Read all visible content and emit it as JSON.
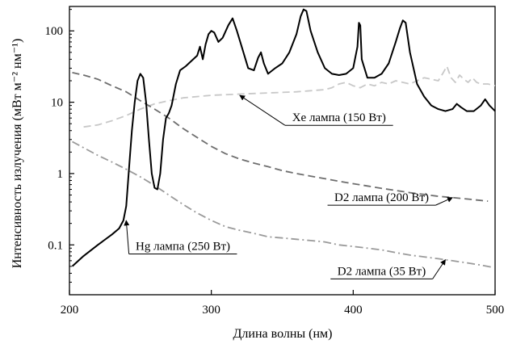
{
  "chart_data": {
    "type": "line",
    "xlabel": "Длина волны (нм)",
    "ylabel": "Интенсивность излучения (мВт м⁻² нм⁻¹)",
    "xlim": [
      200,
      500
    ],
    "ylim": [
      0.02,
      220
    ],
    "yscale": "log",
    "grid": false,
    "xticks": [
      200,
      300,
      400,
      500
    ],
    "xtick_labels": [
      "200",
      "300",
      "400",
      "500"
    ],
    "yticks": [
      0.1,
      1,
      10,
      100
    ],
    "ytick_labels": [
      "0.1",
      "1",
      "10",
      "100"
    ],
    "series": [
      {
        "name": "Hg лампа (250 Вт)",
        "style": "solid",
        "color": "#000000",
        "points": [
          [
            202,
            0.05
          ],
          [
            210,
            0.07
          ],
          [
            220,
            0.1
          ],
          [
            230,
            0.14
          ],
          [
            235,
            0.17
          ],
          [
            238,
            0.22
          ],
          [
            240,
            0.35
          ],
          [
            242,
            1.2
          ],
          [
            244,
            4
          ],
          [
            246,
            10
          ],
          [
            248,
            20
          ],
          [
            250,
            25
          ],
          [
            252,
            22
          ],
          [
            254,
            10
          ],
          [
            256,
            3
          ],
          [
            258,
            1
          ],
          [
            260,
            0.63
          ],
          [
            262,
            0.6
          ],
          [
            264,
            1
          ],
          [
            266,
            3
          ],
          [
            268,
            6
          ],
          [
            270,
            7
          ],
          [
            272,
            9
          ],
          [
            275,
            18
          ],
          [
            278,
            28
          ],
          [
            282,
            32
          ],
          [
            286,
            38
          ],
          [
            290,
            45
          ],
          [
            292,
            60
          ],
          [
            294,
            40
          ],
          [
            296,
            65
          ],
          [
            298,
            90
          ],
          [
            300,
            100
          ],
          [
            302,
            95
          ],
          [
            305,
            70
          ],
          [
            308,
            80
          ],
          [
            312,
            120
          ],
          [
            315,
            150
          ],
          [
            318,
            100
          ],
          [
            322,
            55
          ],
          [
            326,
            30
          ],
          [
            330,
            28
          ],
          [
            333,
            42
          ],
          [
            335,
            50
          ],
          [
            337,
            35
          ],
          [
            340,
            25
          ],
          [
            345,
            30
          ],
          [
            350,
            35
          ],
          [
            355,
            50
          ],
          [
            360,
            90
          ],
          [
            363,
            160
          ],
          [
            365,
            200
          ],
          [
            367,
            190
          ],
          [
            370,
            100
          ],
          [
            375,
            50
          ],
          [
            380,
            30
          ],
          [
            385,
            25
          ],
          [
            390,
            24
          ],
          [
            395,
            25
          ],
          [
            400,
            30
          ],
          [
            403,
            60
          ],
          [
            404,
            130
          ],
          [
            405,
            120
          ],
          [
            406,
            40
          ],
          [
            410,
            22
          ],
          [
            415,
            22
          ],
          [
            420,
            25
          ],
          [
            425,
            35
          ],
          [
            430,
            70
          ],
          [
            433,
            110
          ],
          [
            435,
            140
          ],
          [
            437,
            130
          ],
          [
            440,
            50
          ],
          [
            445,
            18
          ],
          [
            450,
            12
          ],
          [
            455,
            9
          ],
          [
            460,
            8
          ],
          [
            465,
            7.5
          ],
          [
            470,
            8
          ],
          [
            473,
            9.5
          ],
          [
            476,
            8.5
          ],
          [
            480,
            7.5
          ],
          [
            485,
            7.5
          ],
          [
            490,
            9
          ],
          [
            493,
            11
          ],
          [
            496,
            9
          ],
          [
            500,
            7.5
          ]
        ]
      },
      {
        "name": "Xe лампа (150 Вт)",
        "style": "dashed",
        "color": "#c8c8c8",
        "points": [
          [
            210,
            4.5
          ],
          [
            220,
            4.8
          ],
          [
            230,
            5.5
          ],
          [
            240,
            6.5
          ],
          [
            250,
            8
          ],
          [
            260,
            9.5
          ],
          [
            270,
            10.5
          ],
          [
            280,
            11.5
          ],
          [
            300,
            12.5
          ],
          [
            320,
            13
          ],
          [
            340,
            13.5
          ],
          [
            360,
            14
          ],
          [
            380,
            15
          ],
          [
            385,
            16
          ],
          [
            390,
            18
          ],
          [
            395,
            19
          ],
          [
            400,
            17
          ],
          [
            405,
            16
          ],
          [
            410,
            18
          ],
          [
            415,
            17
          ],
          [
            420,
            19
          ],
          [
            425,
            18
          ],
          [
            430,
            20
          ],
          [
            435,
            19
          ],
          [
            440,
            18
          ],
          [
            445,
            20
          ],
          [
            450,
            22
          ],
          [
            455,
            21
          ],
          [
            460,
            20
          ],
          [
            463,
            25
          ],
          [
            466,
            32
          ],
          [
            469,
            22
          ],
          [
            472,
            19
          ],
          [
            475,
            24
          ],
          [
            478,
            21
          ],
          [
            481,
            19
          ],
          [
            484,
            22
          ],
          [
            487,
            19
          ],
          [
            490,
            18
          ],
          [
            495,
            18
          ],
          [
            500,
            17
          ]
        ]
      },
      {
        "name": "D2 лампа (200 Вт)",
        "style": "dashed",
        "color": "#6e6e6e",
        "points": [
          [
            202,
            26
          ],
          [
            210,
            24
          ],
          [
            220,
            21
          ],
          [
            230,
            17
          ],
          [
            240,
            14
          ],
          [
            250,
            10.5
          ],
          [
            260,
            8
          ],
          [
            270,
            6
          ],
          [
            280,
            4.3
          ],
          [
            290,
            3.2
          ],
          [
            300,
            2.4
          ],
          [
            310,
            1.9
          ],
          [
            320,
            1.6
          ],
          [
            330,
            1.4
          ],
          [
            340,
            1.25
          ],
          [
            350,
            1.1
          ],
          [
            360,
            1
          ],
          [
            370,
            0.92
          ],
          [
            380,
            0.85
          ],
          [
            390,
            0.78
          ],
          [
            400,
            0.72
          ],
          [
            410,
            0.67
          ],
          [
            420,
            0.62
          ],
          [
            430,
            0.58
          ],
          [
            440,
            0.54
          ],
          [
            450,
            0.51
          ],
          [
            460,
            0.48
          ],
          [
            470,
            0.46
          ],
          [
            480,
            0.44
          ],
          [
            490,
            0.42
          ],
          [
            495,
            0.41
          ]
        ]
      },
      {
        "name": "D2 лампа (35 Вт)",
        "style": "dash-dot",
        "color": "#9a9a9a",
        "points": [
          [
            202,
            2.8
          ],
          [
            210,
            2.3
          ],
          [
            220,
            1.8
          ],
          [
            230,
            1.45
          ],
          [
            240,
            1.15
          ],
          [
            250,
            0.9
          ],
          [
            260,
            0.68
          ],
          [
            270,
            0.5
          ],
          [
            280,
            0.37
          ],
          [
            290,
            0.28
          ],
          [
            300,
            0.22
          ],
          [
            310,
            0.18
          ],
          [
            320,
            0.16
          ],
          [
            330,
            0.145
          ],
          [
            340,
            0.13
          ],
          [
            350,
            0.125
          ],
          [
            360,
            0.12
          ],
          [
            370,
            0.115
          ],
          [
            380,
            0.11
          ],
          [
            390,
            0.1
          ],
          [
            400,
            0.095
          ],
          [
            410,
            0.09
          ],
          [
            420,
            0.085
          ],
          [
            430,
            0.078
          ],
          [
            440,
            0.072
          ],
          [
            450,
            0.068
          ],
          [
            460,
            0.064
          ],
          [
            470,
            0.06
          ],
          [
            480,
            0.056
          ],
          [
            490,
            0.052
          ],
          [
            497,
            0.049
          ]
        ]
      }
    ],
    "annotations": [
      {
        "text": "Hg лампа (250 Вт)",
        "arrow_to": [
          240,
          0.22
        ],
        "label_at": [
          280,
          0.085
        ]
      },
      {
        "text": "Xe лампа (150 Вт)",
        "arrow_to": [
          320,
          12.5
        ],
        "label_at": [
          390,
          5.4
        ]
      },
      {
        "text": "D2 лампа (200 Вт)",
        "arrow_to": [
          470,
          0.46
        ],
        "label_at": [
          420,
          0.41
        ]
      },
      {
        "text": "D2 лампа (35 Вт)",
        "arrow_to": [
          465,
          0.062
        ],
        "label_at": [
          420,
          0.038
        ]
      }
    ]
  }
}
